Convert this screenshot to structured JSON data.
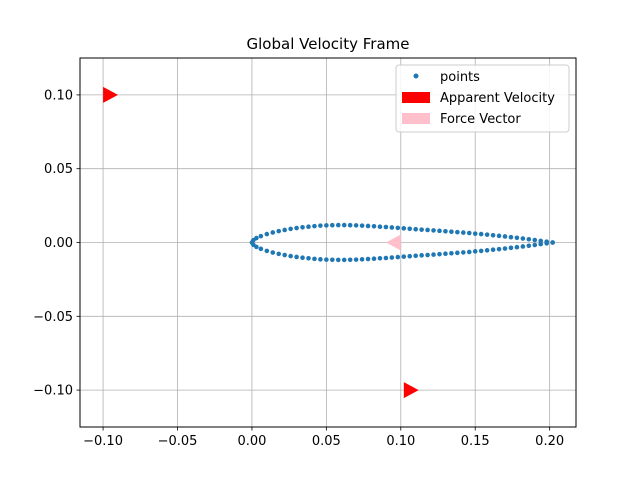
{
  "chart_data": {
    "type": "scatter",
    "title": "Global Velocity Frame",
    "xlabel": "",
    "ylabel": "",
    "xlim": [
      -0.1155,
      0.2177
    ],
    "ylim": [
      -0.125,
      0.125
    ],
    "grid": true,
    "legend_position": "upper right",
    "x_ticks": [
      {
        "value": -0.1,
        "label": "−0.10"
      },
      {
        "value": -0.05,
        "label": "−0.05"
      },
      {
        "value": 0.0,
        "label": "0.00"
      },
      {
        "value": 0.05,
        "label": "0.05"
      },
      {
        "value": 0.1,
        "label": "0.10"
      },
      {
        "value": 0.15,
        "label": "0.15"
      },
      {
        "value": 0.2,
        "label": "0.20"
      }
    ],
    "y_ticks": [
      {
        "value": 0.1,
        "label": "0.10"
      },
      {
        "value": 0.05,
        "label": "0.05"
      },
      {
        "value": 0.0,
        "label": "0.00"
      },
      {
        "value": -0.05,
        "label": "−0.05"
      },
      {
        "value": -0.1,
        "label": "−0.10"
      }
    ],
    "series": [
      {
        "name": "points",
        "kind": "scatter",
        "color": "#1f77b4",
        "x": [
          0.202,
          0.198,
          0.194,
          0.19,
          0.186,
          0.182,
          0.178,
          0.174,
          0.17,
          0.166,
          0.162,
          0.158,
          0.154,
          0.15,
          0.146,
          0.142,
          0.138,
          0.134,
          0.13,
          0.126,
          0.122,
          0.118,
          0.114,
          0.11,
          0.106,
          0.102,
          0.098,
          0.094,
          0.09,
          0.086,
          0.082,
          0.078,
          0.074,
          0.07,
          0.066,
          0.062,
          0.058,
          0.054,
          0.05,
          0.046,
          0.042,
          0.038,
          0.034,
          0.03,
          0.026,
          0.022,
          0.018,
          0.014,
          0.01,
          0.006,
          0.003,
          0.001,
          0.0,
          0.001,
          0.003,
          0.006,
          0.01,
          0.014,
          0.018,
          0.022,
          0.026,
          0.03,
          0.034,
          0.038,
          0.042,
          0.046,
          0.05,
          0.054,
          0.058,
          0.062,
          0.066,
          0.07,
          0.074,
          0.078,
          0.082,
          0.086,
          0.09,
          0.094,
          0.098,
          0.102,
          0.106,
          0.11,
          0.114,
          0.118,
          0.122,
          0.126,
          0.13,
          0.134,
          0.138,
          0.142,
          0.146,
          0.15,
          0.154,
          0.158,
          0.162,
          0.166,
          0.17,
          0.174,
          0.178,
          0.182,
          0.186,
          0.19,
          0.194,
          0.198,
          0.202
        ],
        "y": [
          0.0,
          0.0006,
          0.0011,
          0.0017,
          0.0022,
          0.0027,
          0.0032,
          0.0036,
          0.0041,
          0.0045,
          0.0049,
          0.0053,
          0.0057,
          0.006,
          0.0064,
          0.0067,
          0.007,
          0.0073,
          0.0076,
          0.0079,
          0.0082,
          0.0085,
          0.0087,
          0.009,
          0.0093,
          0.0096,
          0.0099,
          0.0102,
          0.0105,
          0.0107,
          0.011,
          0.0112,
          0.0114,
          0.0116,
          0.0117,
          0.0118,
          0.0118,
          0.0117,
          0.0116,
          0.0114,
          0.0111,
          0.0107,
          0.0103,
          0.0098,
          0.0092,
          0.0085,
          0.0077,
          0.0068,
          0.0057,
          0.0043,
          0.003,
          0.0016,
          0.0,
          -0.0016,
          -0.003,
          -0.0043,
          -0.0057,
          -0.0068,
          -0.0077,
          -0.0085,
          -0.0092,
          -0.0098,
          -0.0103,
          -0.0107,
          -0.0111,
          -0.0114,
          -0.0116,
          -0.0117,
          -0.0118,
          -0.0118,
          -0.0117,
          -0.0116,
          -0.0114,
          -0.0112,
          -0.011,
          -0.0107,
          -0.0105,
          -0.0102,
          -0.0099,
          -0.0096,
          -0.0093,
          -0.009,
          -0.0087,
          -0.0085,
          -0.0082,
          -0.0079,
          -0.0076,
          -0.0073,
          -0.007,
          -0.0067,
          -0.0064,
          -0.006,
          -0.0057,
          -0.0053,
          -0.0049,
          -0.0045,
          -0.0041,
          -0.0036,
          -0.0032,
          -0.0027,
          -0.0022,
          -0.0017,
          -0.0011,
          -0.0006,
          0.0
        ]
      },
      {
        "name": "Apparent Velocity",
        "kind": "arrow",
        "color": "#ff0000",
        "arrows": [
          {
            "x": -0.1,
            "y": 0.1,
            "dx": 0.01,
            "dy": 0.0
          },
          {
            "x": 0.102,
            "y": -0.1,
            "dx": 0.01,
            "dy": 0.0
          }
        ]
      },
      {
        "name": "Force Vector",
        "kind": "arrow",
        "color": "#ffc0cb",
        "arrows": [
          {
            "x": 0.1,
            "y": 0.0,
            "dx": -0.01,
            "dy": 0.0
          }
        ]
      }
    ]
  }
}
